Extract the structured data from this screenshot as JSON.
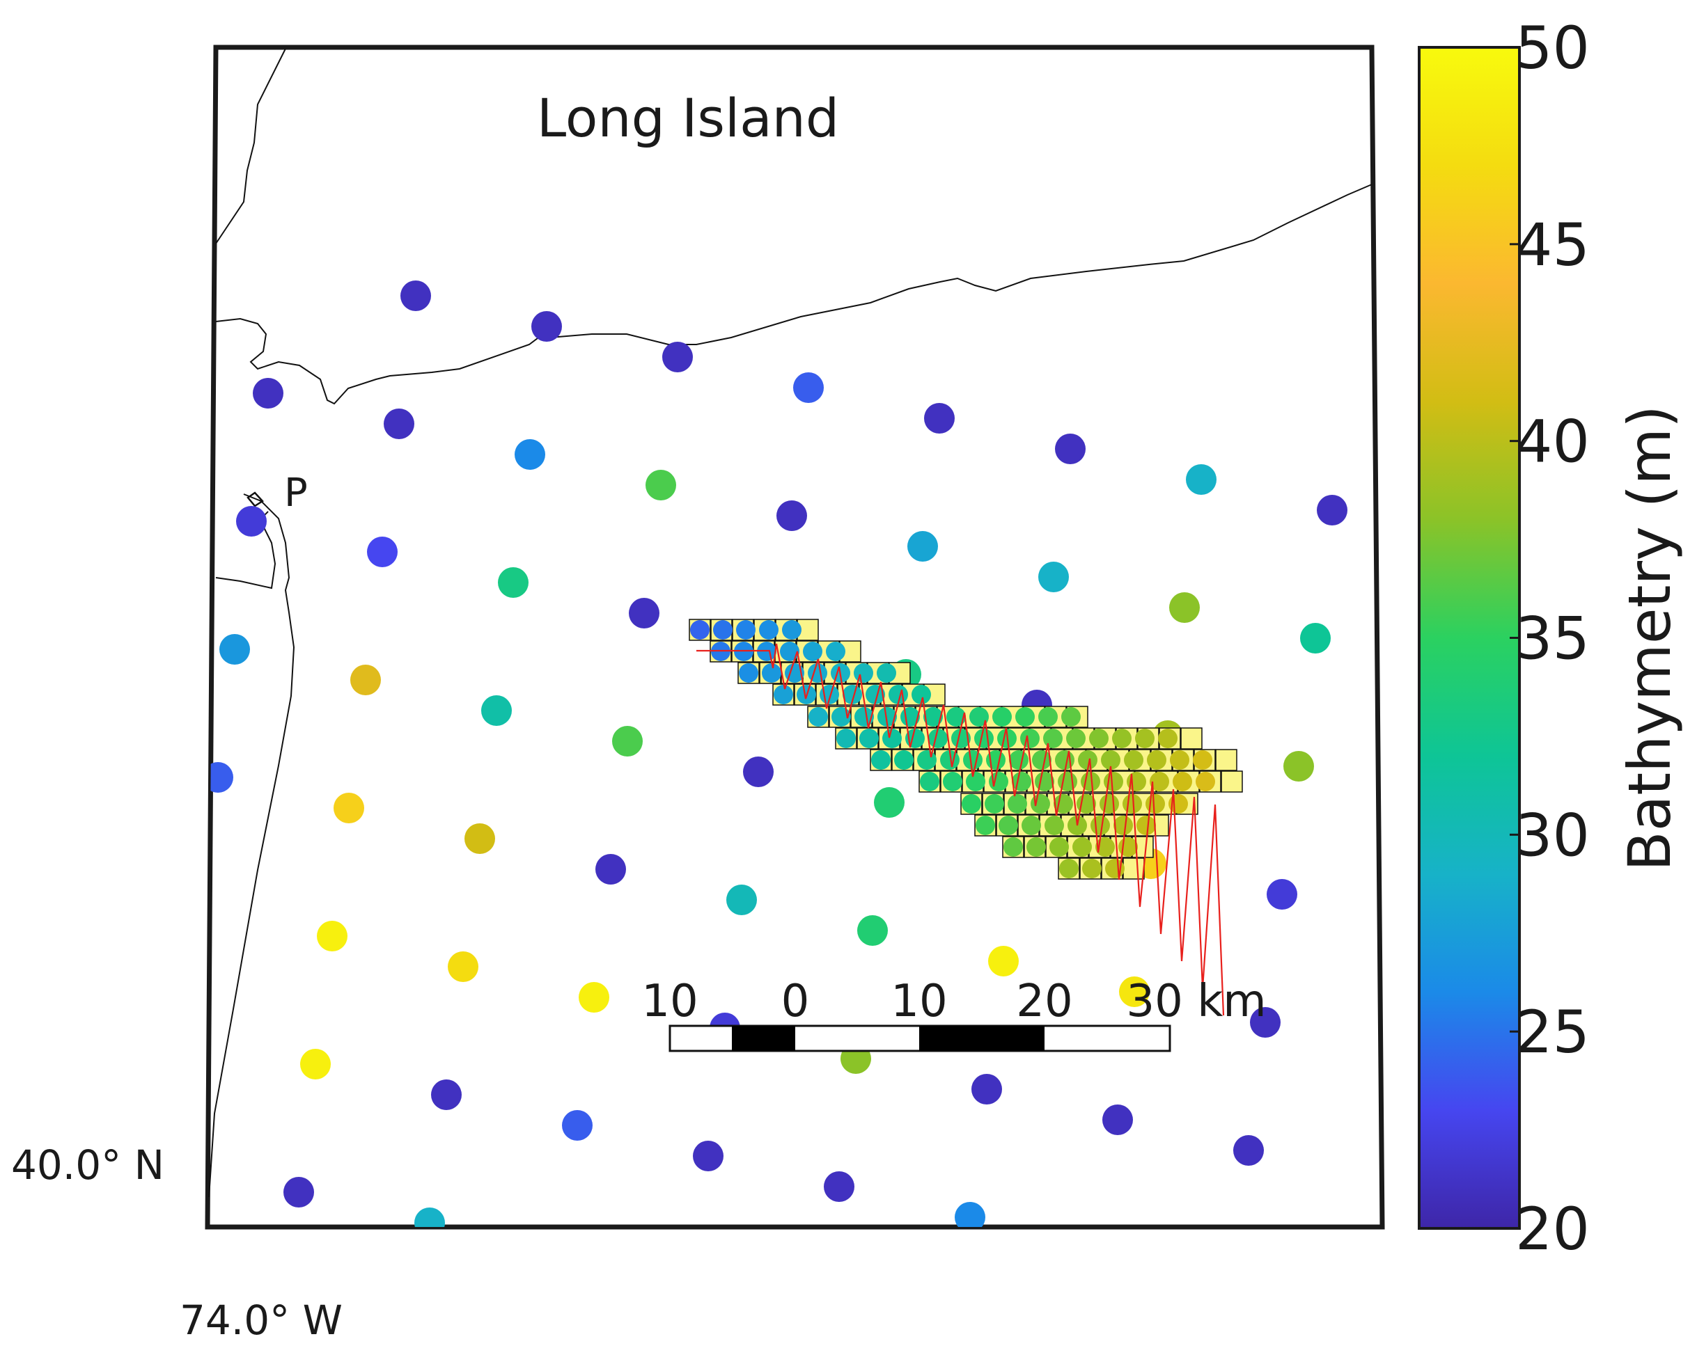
{
  "map": {
    "region_label": "Long Island",
    "site_label": "P",
    "lat_label": "40.0° N",
    "lon_label": "74.0° W"
  },
  "scale_bar": {
    "ticks": [
      "10",
      "0",
      "10",
      "20",
      "30 km"
    ]
  },
  "colorbar": {
    "title": "Bathymetry (m)",
    "ticks": [
      "50",
      "45",
      "40",
      "35",
      "30",
      "25",
      "20"
    ],
    "min": 20,
    "max": 50,
    "stops": [
      "#3e26a8",
      "#4646f0",
      "#1b8ae8",
      "#17b2c8",
      "#0ec596",
      "#2bd160",
      "#8bc328",
      "#d2bd14",
      "#fbb830",
      "#f4dc10",
      "#f8fa0d"
    ]
  },
  "stations": [
    {
      "depth": 21
    },
    {
      "depth": 21
    },
    {
      "depth": 21
    },
    {
      "depth": 24
    },
    {
      "depth": 21
    },
    {
      "depth": 21
    },
    {
      "depth": 21
    },
    {
      "depth": 21
    },
    {
      "depth": 26
    },
    {
      "depth": 29
    },
    {
      "depth": 36
    },
    {
      "depth": 21
    },
    {
      "depth": 21
    },
    {
      "depth": 22
    },
    {
      "depth": 28
    },
    {
      "depth": 23
    },
    {
      "depth": 29
    },
    {
      "depth": 33
    },
    {
      "depth": 38
    },
    {
      "depth": 21
    },
    {
      "depth": 32
    },
    {
      "depth": 24
    },
    {
      "depth": 27
    },
    {
      "depth": 33
    },
    {
      "depth": 42
    },
    {
      "depth": 21
    },
    {
      "depth": 31
    },
    {
      "depth": 39
    },
    {
      "depth": 36
    },
    {
      "depth": 38
    },
    {
      "depth": 21
    },
    {
      "depth": 24
    },
    {
      "depth": 34
    },
    {
      "depth": 46
    },
    {
      "depth": 38
    },
    {
      "depth": 41
    },
    {
      "depth": 46
    },
    {
      "depth": 21
    },
    {
      "depth": 22
    },
    {
      "depth": 30
    },
    {
      "depth": 34
    },
    {
      "depth": 49
    },
    {
      "depth": 49
    },
    {
      "depth": 47
    },
    {
      "depth": 48
    },
    {
      "depth": 49
    },
    {
      "depth": 21
    },
    {
      "depth": 22
    },
    {
      "depth": 38
    },
    {
      "depth": 49
    }
  ]
}
